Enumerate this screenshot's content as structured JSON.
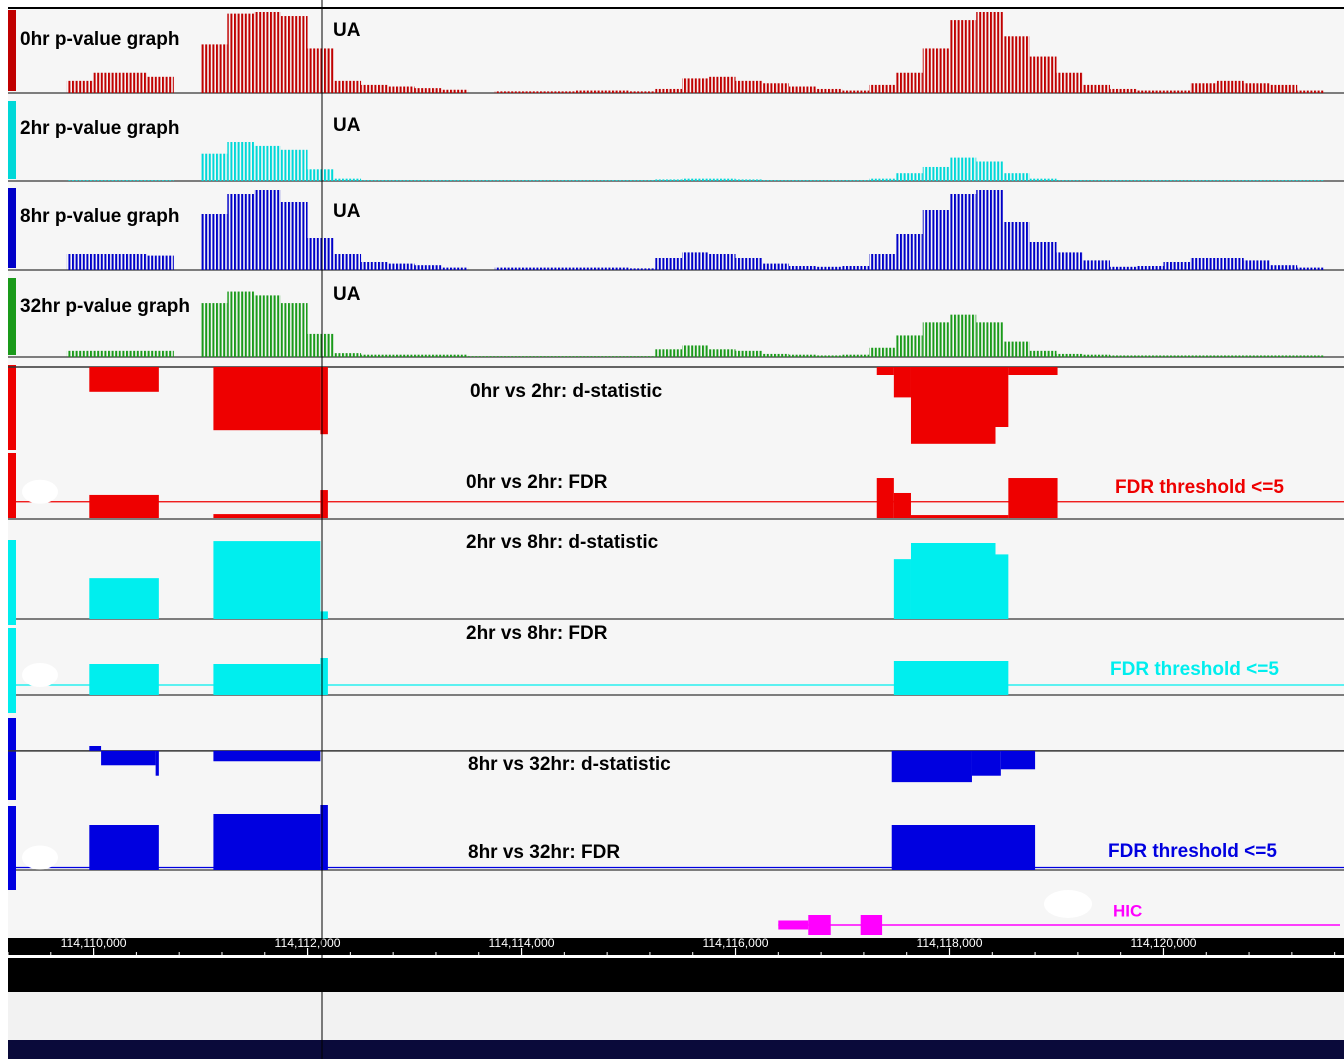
{
  "chart_data": {
    "type": "genome-browser",
    "xlim": [
      114109200,
      114121650
    ],
    "xticks": [
      {
        "value": 114110000,
        "label": "114,110,000"
      },
      {
        "value": 114112000,
        "label": "114,112,000"
      },
      {
        "value": 114114000,
        "label": "114,114,000"
      },
      {
        "value": 114116000,
        "label": "114,116,000"
      },
      {
        "value": 114118000,
        "label": "114,118,000"
      },
      {
        "value": 114120000,
        "label": "114,120,000"
      }
    ],
    "signal_ylim": [
      0,
      100
    ],
    "bins": [
      114109250,
      114109500,
      114109750,
      114110000,
      114110250,
      114110500,
      114110750,
      114111000,
      114111250,
      114111500,
      114111750,
      114112000,
      114112250,
      114112500,
      114112750,
      114113000,
      114113250,
      114113500,
      114113750,
      114114000,
      114114250,
      114114500,
      114114750,
      114115000,
      114115250,
      114115500,
      114115750,
      114116000,
      114116250,
      114116500,
      114116750,
      114117000,
      114117250,
      114117500,
      114117750,
      114118000,
      114118250,
      114118500,
      114118750,
      114119000,
      114119250,
      114119500,
      114119750,
      114120000,
      114120250,
      114120500,
      114120750,
      114121000,
      114121250,
      114121500
    ],
    "signal_tracks": [
      {
        "name": "0hr p-value graph",
        "annotation": "UA",
        "color": "#c00000",
        "values": [
          0,
          0,
          15,
          25,
          25,
          20,
          0,
          60,
          98,
          100,
          95,
          55,
          15,
          10,
          8,
          6,
          4,
          0,
          2,
          2,
          2,
          3,
          3,
          2,
          5,
          18,
          20,
          15,
          12,
          8,
          5,
          3,
          10,
          25,
          55,
          90,
          100,
          70,
          45,
          25,
          10,
          5,
          3,
          3,
          12,
          15,
          12,
          10,
          3
        ]
      },
      {
        "name": "2hr p-value graph",
        "annotation": "UA",
        "color": "#00d8d8",
        "values": [
          0,
          0,
          1,
          1,
          1,
          1,
          0,
          35,
          50,
          45,
          40,
          15,
          3,
          1,
          1,
          1,
          1,
          1,
          1,
          1,
          1,
          1,
          1,
          1,
          2,
          3,
          3,
          2,
          1,
          1,
          1,
          1,
          3,
          10,
          18,
          30,
          25,
          10,
          3,
          1,
          1,
          1,
          1,
          1,
          1,
          1,
          1,
          1,
          1
        ]
      },
      {
        "name": "8hr p-value graph",
        "annotation": "UA",
        "color": "#0000c8",
        "values": [
          0,
          0,
          20,
          20,
          20,
          18,
          0,
          70,
          95,
          100,
          85,
          40,
          20,
          10,
          8,
          6,
          3,
          0,
          3,
          3,
          3,
          3,
          3,
          2,
          15,
          22,
          20,
          15,
          8,
          5,
          4,
          5,
          20,
          45,
          75,
          95,
          100,
          60,
          35,
          22,
          12,
          4,
          5,
          10,
          15,
          15,
          12,
          6,
          3
        ]
      },
      {
        "name": "32hr p-value graph",
        "annotation": "UA",
        "color": "#1a9a1a",
        "values": [
          0,
          0,
          8,
          8,
          8,
          8,
          0,
          70,
          85,
          80,
          70,
          30,
          5,
          3,
          3,
          3,
          3,
          1,
          1,
          1,
          1,
          1,
          1,
          1,
          10,
          15,
          10,
          8,
          4,
          3,
          2,
          3,
          12,
          28,
          45,
          55,
          45,
          20,
          8,
          4,
          3,
          2,
          2,
          2,
          2,
          2,
          2,
          2,
          2
        ]
      }
    ],
    "region_tracks": [
      {
        "name": "0hr vs 2hr: d-statistic",
        "color": "#ee0000",
        "ylim": [
          -10,
          0
        ],
        "segments": [
          {
            "start": 114109960,
            "end": 114110610,
            "value": -3.1
          },
          {
            "start": 114111120,
            "end": 114112120,
            "value": -7.9
          },
          {
            "start": 114112120,
            "end": 114112190,
            "value": -8.4
          },
          {
            "start": 114117320,
            "end": 114117480,
            "value": -1.0
          },
          {
            "start": 114117480,
            "end": 114117640,
            "value": -3.8
          },
          {
            "start": 114117640,
            "end": 114118430,
            "value": -9.6
          },
          {
            "start": 114118430,
            "end": 114118550,
            "value": -7.5
          },
          {
            "start": 114118550,
            "end": 114119010,
            "value": -1.0
          }
        ]
      },
      {
        "name": "0hr vs 2hr: FDR",
        "color": "#ee0000",
        "ylim": [
          0,
          20
        ],
        "threshold": 5,
        "threshold_label": "FDR threshold <=5",
        "segments": [
          {
            "start": 114109960,
            "end": 114110610,
            "value": 7.1
          },
          {
            "start": 114111120,
            "end": 114112120,
            "value": 1.2
          },
          {
            "start": 114112120,
            "end": 114112190,
            "value": 8.6
          },
          {
            "start": 114117320,
            "end": 114117480,
            "value": 12.3
          },
          {
            "start": 114117480,
            "end": 114117640,
            "value": 7.7
          },
          {
            "start": 114117640,
            "end": 114118550,
            "value": 0.9
          },
          {
            "start": 114118550,
            "end": 114119010,
            "value": 12.3
          }
        ]
      },
      {
        "name": "2hr vs 8hr: d-statistic",
        "color": "#00eeee",
        "ylim": [
          0,
          10
        ],
        "segments": [
          {
            "start": 114109960,
            "end": 114110610,
            "value": 4.3
          },
          {
            "start": 114111120,
            "end": 114112120,
            "value": 8.2
          },
          {
            "start": 114112120,
            "end": 114112190,
            "value": 0.8
          },
          {
            "start": 114117480,
            "end": 114117640,
            "value": 6.3
          },
          {
            "start": 114117640,
            "end": 114118430,
            "value": 8.0
          },
          {
            "start": 114118430,
            "end": 114118550,
            "value": 6.8
          }
        ]
      },
      {
        "name": "2hr vs 8hr: FDR",
        "color": "#00eeee",
        "ylim": [
          0,
          35
        ],
        "threshold": 5,
        "threshold_label": "FDR threshold <=5",
        "segments": [
          {
            "start": 114109960,
            "end": 114110610,
            "value": 15.5
          },
          {
            "start": 114111120,
            "end": 114112120,
            "value": 15.5
          },
          {
            "start": 114112120,
            "end": 114112190,
            "value": 18.5
          },
          {
            "start": 114117480,
            "end": 114118550,
            "value": 17
          }
        ]
      },
      {
        "name": "8hr vs 32hr: d-statistic",
        "color": "#0000e0",
        "ylim": [
          -6,
          0.6
        ],
        "segments": [
          {
            "start": 114109960,
            "end": 114110070,
            "value": 0.6
          },
          {
            "start": 114110070,
            "end": 114110580,
            "value": -1.8
          },
          {
            "start": 114110580,
            "end": 114110610,
            "value": -3.1
          },
          {
            "start": 114111120,
            "end": 114112120,
            "value": -1.3
          },
          {
            "start": 114117460,
            "end": 114118210,
            "value": -3.9
          },
          {
            "start": 114118210,
            "end": 114118480,
            "value": -3.1
          },
          {
            "start": 114118480,
            "end": 114118800,
            "value": -2.3
          }
        ]
      },
      {
        "name": "8hr vs 32hr: FDR",
        "color": "#0000e0",
        "ylim": [
          0,
          130
        ],
        "threshold": 5,
        "threshold_label": "FDR threshold <=5",
        "segments": [
          {
            "start": 114109960,
            "end": 114110610,
            "value": 90
          },
          {
            "start": 114111120,
            "end": 114112120,
            "value": 112
          },
          {
            "start": 114112120,
            "end": 114112190,
            "value": 130
          },
          {
            "start": 114117460,
            "end": 114118800,
            "value": 90
          }
        ]
      }
    ],
    "gene_track": {
      "name": "HIC",
      "color": "#ff00ff",
      "start": 114116400,
      "end": 114121650,
      "exons": [
        {
          "start": 114116400,
          "end": 114116680,
          "thick": false
        },
        {
          "start": 114116680,
          "end": 114116890,
          "thick": true
        },
        {
          "start": 114117170,
          "end": 114117370,
          "thick": true
        }
      ]
    }
  }
}
